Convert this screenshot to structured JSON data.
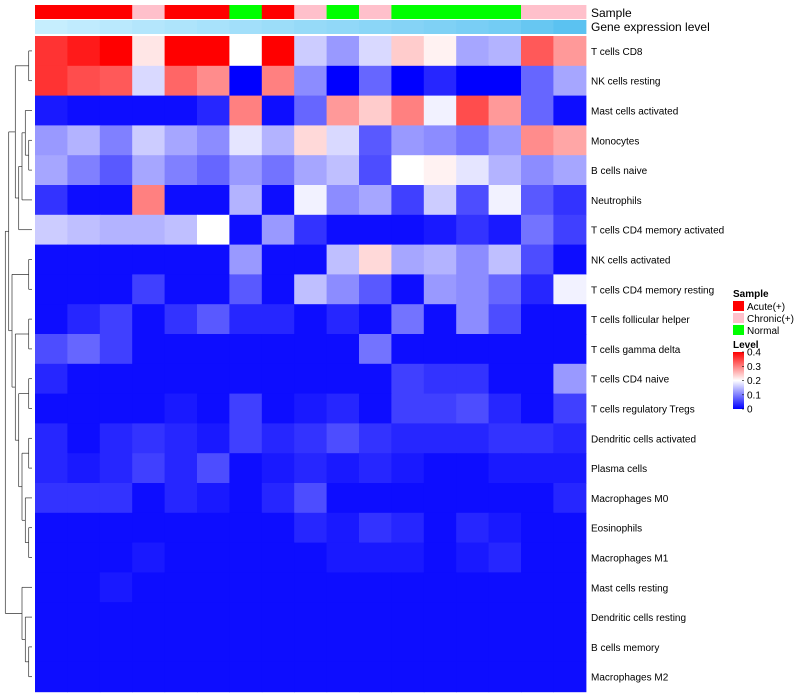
{
  "chart_data": {
    "type": "heatmap",
    "title": "",
    "annotation_labels": {
      "sample": "Sample",
      "expression": "Gene expression level"
    },
    "rows": [
      "T cells CD8",
      "NK cells resting",
      "Mast cells activated",
      "Monocytes",
      "B cells naive",
      "Neutrophils",
      "T cells CD4 memory activated",
      "NK cells activated",
      "T cells CD4 memory resting",
      "T cells follicular helper",
      "T cells gamma delta",
      "T cells CD4 naive",
      "T cells regulatory  Tregs",
      "Dendritic cells activated",
      "Plasma cells",
      "Macrophages M0",
      "Eosinophils",
      "Macrophages M1",
      "Mast cells resting",
      "Dendritic cells resting",
      "B cells memory",
      "Macrophages M2"
    ],
    "column_samples": [
      "Acute(+)",
      "Acute(+)",
      "Acute(+)",
      "Chronic(+)",
      "Acute(+)",
      "Acute(+)",
      "Normal",
      "Acute(+)",
      "Chronic(+)",
      "Normal",
      "Chronic(+)",
      "Normal",
      "Normal",
      "Normal",
      "Normal",
      "Chronic(+)",
      "Chronic(+)"
    ],
    "column_expression": [
      0.05,
      0.1,
      0.15,
      0.2,
      0.25,
      0.3,
      0.35,
      0.4,
      0.45,
      0.5,
      0.55,
      0.6,
      0.65,
      0.7,
      0.75,
      0.85,
      0.95
    ],
    "values": [
      [
        0.36,
        0.38,
        0.4,
        0.22,
        0.4,
        0.4,
        0.2,
        0.4,
        0.16,
        0.12,
        0.17,
        0.24,
        0.21,
        0.13,
        0.14,
        0.33,
        0.28
      ],
      [
        0.36,
        0.34,
        0.33,
        0.17,
        0.32,
        0.29,
        0.0,
        0.3,
        0.11,
        0.0,
        0.08,
        0.0,
        0.03,
        0.0,
        0.0,
        0.08,
        0.13
      ],
      [
        0.02,
        0.01,
        0.01,
        0.01,
        0.01,
        0.03,
        0.3,
        0.01,
        0.08,
        0.28,
        0.24,
        0.3,
        0.19,
        0.34,
        0.28,
        0.08,
        0.01
      ],
      [
        0.12,
        0.14,
        0.1,
        0.16,
        0.13,
        0.11,
        0.18,
        0.14,
        0.23,
        0.17,
        0.07,
        0.12,
        0.11,
        0.09,
        0.12,
        0.29,
        0.27
      ],
      [
        0.13,
        0.1,
        0.07,
        0.13,
        0.1,
        0.08,
        0.12,
        0.09,
        0.13,
        0.15,
        0.06,
        0.2,
        0.21,
        0.18,
        0.14,
        0.11,
        0.13
      ],
      [
        0.04,
        0.01,
        0.01,
        0.3,
        0.01,
        0.01,
        0.14,
        0.01,
        0.19,
        0.11,
        0.13,
        0.05,
        0.16,
        0.06,
        0.19,
        0.07,
        0.04
      ],
      [
        0.16,
        0.15,
        0.14,
        0.14,
        0.15,
        0.2,
        0.01,
        0.12,
        0.04,
        0.01,
        0.01,
        0.01,
        0.02,
        0.04,
        0.02,
        0.09,
        0.05
      ],
      [
        0.01,
        0.01,
        0.01,
        0.01,
        0.01,
        0.01,
        0.12,
        0.01,
        0.01,
        0.15,
        0.23,
        0.13,
        0.14,
        0.11,
        0.15,
        0.06,
        0.01
      ],
      [
        0.01,
        0.01,
        0.01,
        0.05,
        0.01,
        0.01,
        0.07,
        0.01,
        0.15,
        0.11,
        0.07,
        0.01,
        0.12,
        0.11,
        0.08,
        0.03,
        0.19
      ],
      [
        0.01,
        0.03,
        0.05,
        0.01,
        0.04,
        0.07,
        0.03,
        0.03,
        0.01,
        0.03,
        0.01,
        0.09,
        0.01,
        0.11,
        0.06,
        0.01,
        0.01
      ],
      [
        0.06,
        0.08,
        0.05,
        0.01,
        0.01,
        0.01,
        0.01,
        0.01,
        0.01,
        0.01,
        0.09,
        0.01,
        0.01,
        0.01,
        0.01,
        0.01,
        0.01
      ],
      [
        0.03,
        0.01,
        0.01,
        0.01,
        0.01,
        0.01,
        0.01,
        0.01,
        0.01,
        0.01,
        0.01,
        0.05,
        0.04,
        0.04,
        0.01,
        0.01,
        0.12
      ],
      [
        0.01,
        0.01,
        0.01,
        0.01,
        0.02,
        0.01,
        0.05,
        0.01,
        0.02,
        0.03,
        0.01,
        0.05,
        0.05,
        0.06,
        0.03,
        0.01,
        0.05
      ],
      [
        0.03,
        0.01,
        0.03,
        0.04,
        0.03,
        0.02,
        0.05,
        0.03,
        0.04,
        0.06,
        0.04,
        0.03,
        0.03,
        0.03,
        0.04,
        0.04,
        0.03
      ],
      [
        0.03,
        0.02,
        0.03,
        0.05,
        0.03,
        0.06,
        0.01,
        0.02,
        0.03,
        0.02,
        0.03,
        0.02,
        0.01,
        0.01,
        0.02,
        0.02,
        0.02
      ],
      [
        0.04,
        0.04,
        0.04,
        0.01,
        0.03,
        0.02,
        0.01,
        0.03,
        0.06,
        0.01,
        0.01,
        0.01,
        0.01,
        0.01,
        0.01,
        0.01,
        0.03
      ],
      [
        0.01,
        0.01,
        0.01,
        0.01,
        0.01,
        0.01,
        0.01,
        0.01,
        0.03,
        0.02,
        0.04,
        0.03,
        0.01,
        0.03,
        0.02,
        0.01,
        0.01
      ],
      [
        0.01,
        0.01,
        0.01,
        0.02,
        0.01,
        0.01,
        0.01,
        0.01,
        0.01,
        0.02,
        0.02,
        0.02,
        0.01,
        0.02,
        0.03,
        0.01,
        0.01
      ],
      [
        0.01,
        0.01,
        0.02,
        0.01,
        0.01,
        0.01,
        0.01,
        0.01,
        0.01,
        0.01,
        0.01,
        0.01,
        0.01,
        0.01,
        0.01,
        0.01,
        0.01
      ],
      [
        0.01,
        0.01,
        0.01,
        0.01,
        0.01,
        0.01,
        0.01,
        0.01,
        0.01,
        0.01,
        0.01,
        0.01,
        0.01,
        0.01,
        0.01,
        0.01,
        0.01
      ],
      [
        0.01,
        0.01,
        0.01,
        0.01,
        0.01,
        0.01,
        0.01,
        0.01,
        0.01,
        0.01,
        0.01,
        0.01,
        0.01,
        0.01,
        0.01,
        0.01,
        0.01
      ],
      [
        0.01,
        0.01,
        0.01,
        0.01,
        0.01,
        0.01,
        0.01,
        0.01,
        0.01,
        0.01,
        0.01,
        0.01,
        0.01,
        0.01,
        0.01,
        0.01,
        0.01
      ]
    ],
    "value_range": [
      0,
      0.4
    ],
    "color_scale": [
      "#0000ff",
      "#ffffff",
      "#ff0000"
    ],
    "legend": {
      "sample": {
        "title": "Sample",
        "entries": [
          {
            "label": "Acute(+)",
            "color": "#ff0000"
          },
          {
            "label": "Chronic(+)",
            "color": "#ffc0cb"
          },
          {
            "label": "Normal",
            "color": "#00ff00"
          }
        ]
      },
      "level": {
        "title": "Level",
        "ticks": [
          0.4,
          0.3,
          0.2,
          0.1,
          0
        ]
      }
    },
    "expression_colors": [
      "#ccf0ff",
      "#55c0f0"
    ],
    "dendrogram": true,
    "legend_position": "right"
  }
}
